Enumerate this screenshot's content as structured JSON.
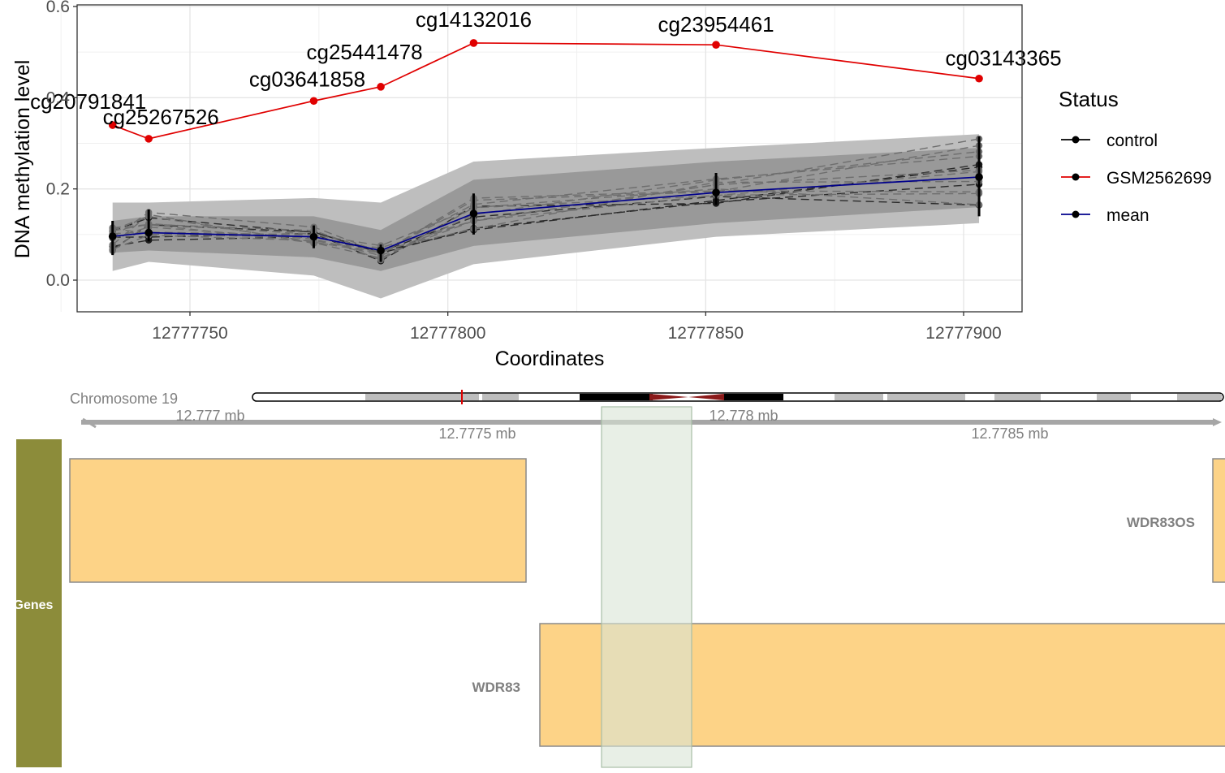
{
  "chart_data": {
    "type": "line",
    "xlabel": "Coordinates",
    "ylabel": "DNA methylation level",
    "xlim": [
      12777717,
      12777900
    ],
    "ylim": [
      -0.07,
      0.6
    ],
    "x_ticks": [
      12777750,
      12777800,
      12777850,
      12777900
    ],
    "y_ticks": [
      0.0,
      0.2,
      0.4,
      0.6
    ],
    "y_tick_labels": [
      "0.0",
      "0.2",
      "0.4",
      "0.6"
    ],
    "grid": true,
    "legend": {
      "title": "Status",
      "placement": "right",
      "entries": [
        {
          "name": "control",
          "color": "#000000"
        },
        {
          "name": "GSM2562699",
          "color": "#e00000"
        },
        {
          "name": "mean",
          "color": "#00008b"
        }
      ]
    },
    "probes": [
      "cg20791841",
      "cg25267526",
      "cg03641858",
      "cg25441478",
      "cg14132016",
      "cg23954461",
      "cg03143365"
    ],
    "x": [
      12777735,
      12777742,
      12777774,
      12777787,
      12777805,
      12777852,
      12777903
    ],
    "series": [
      {
        "name": "GSM2562699",
        "color": "#e00000",
        "values": [
          0.34,
          0.31,
          0.393,
          0.424,
          0.52,
          0.516,
          0.442
        ]
      },
      {
        "name": "mean",
        "color": "#00008b",
        "values": [
          0.096,
          0.104,
          0.095,
          0.065,
          0.146,
          0.192,
          0.226
        ]
      }
    ],
    "control_range": {
      "min": [
        0.055,
        0.085,
        0.07,
        0.04,
        0.1,
        0.165,
        0.14
      ],
      "max": [
        0.13,
        0.155,
        0.12,
        0.078,
        0.19,
        0.235,
        0.315
      ]
    },
    "band_inner": {
      "lower": [
        0.06,
        0.065,
        0.05,
        0.02,
        0.075,
        0.125,
        0.16
      ],
      "upper": [
        0.13,
        0.14,
        0.14,
        0.11,
        0.22,
        0.26,
        0.29
      ]
    },
    "band_outer": {
      "lower": [
        0.02,
        0.04,
        0.01,
        -0.04,
        0.035,
        0.095,
        0.125
      ],
      "upper": [
        0.17,
        0.17,
        0.18,
        0.17,
        0.26,
        0.29,
        0.32
      ]
    }
  },
  "track": {
    "chromosome_label": "Chromosome 19",
    "ruler_labels": [
      "12.777 mb",
      "12.7775 mb",
      "12.778 mb",
      "12.7785 mb"
    ],
    "panel_label": "Genes",
    "panel_color": "#8c8c3a",
    "gene_fill": "#fdd387",
    "highlight_color": "#d9e5d6",
    "genes": [
      {
        "name": "WDR83OS",
        "start": 12776800,
        "end": 12777600,
        "row": 1
      },
      {
        "name": "WDR83OS",
        "start": 12778870,
        "end": 12779100,
        "row": 1
      },
      {
        "name": "WDR83",
        "start": 12777626,
        "end": 12779100,
        "row": 2
      }
    ],
    "highlight": {
      "start": 12777735,
      "end": 12777903
    },
    "genome_range": [
      12776800,
      12778895
    ]
  }
}
